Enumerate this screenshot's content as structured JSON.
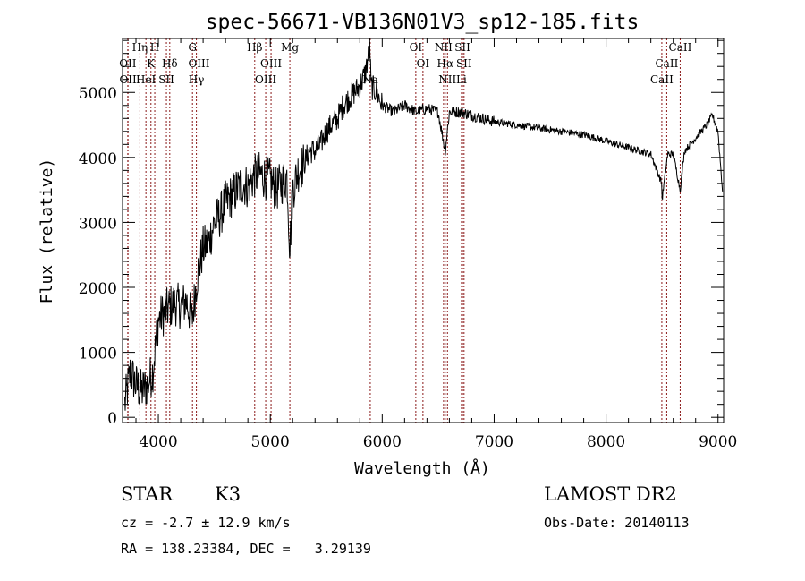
{
  "chart_data": {
    "type": "line",
    "title": "spec-56671-VB136N01V3_sp12-185.fits",
    "xlabel": "Wavelength (Å)",
    "ylabel": "Flux (relative)",
    "xlim": [
      3680,
      9050
    ],
    "ylim": [
      -80,
      5830
    ],
    "x_ticks": [
      4000,
      5000,
      6000,
      7000,
      8000,
      9000
    ],
    "y_ticks": [
      0,
      1000,
      2000,
      3000,
      4000,
      5000
    ],
    "grid": false,
    "series": [
      {
        "name": "spectrum",
        "x": [
          3700,
          3750,
          3800,
          3850,
          3900,
          3950,
          4000,
          4050,
          4100,
          4150,
          4200,
          4250,
          4300,
          4350,
          4400,
          4450,
          4500,
          4550,
          4600,
          4650,
          4700,
          4750,
          4800,
          4850,
          4900,
          4950,
          5000,
          5050,
          5100,
          5150,
          5175,
          5200,
          5250,
          5300,
          5350,
          5400,
          5450,
          5500,
          5550,
          5600,
          5650,
          5700,
          5750,
          5800,
          5850,
          5890,
          5900,
          5950,
          6000,
          6050,
          6100,
          6150,
          6200,
          6250,
          6300,
          6400,
          6500,
          6563,
          6600,
          6700,
          6800,
          6900,
          7000,
          7200,
          7400,
          7600,
          7800,
          8000,
          8200,
          8400,
          8498,
          8500,
          8550,
          8600,
          8662,
          8700,
          8800,
          8900,
          8950,
          9000,
          9040
        ],
        "y": [
          200,
          700,
          500,
          400,
          500,
          700,
          1500,
          1600,
          1700,
          1750,
          1700,
          1800,
          1500,
          2200,
          2600,
          2700,
          3000,
          3100,
          3300,
          3400,
          3500,
          3600,
          3550,
          3700,
          3750,
          3700,
          3650,
          3500,
          3600,
          3700,
          2600,
          3500,
          3800,
          3900,
          4100,
          4100,
          4200,
          4400,
          4500,
          4600,
          4800,
          4900,
          5000,
          5100,
          5300,
          5700,
          5100,
          5000,
          4800,
          4750,
          4700,
          4750,
          4800,
          4750,
          4700,
          4750,
          4700,
          4100,
          4700,
          4700,
          4650,
          4600,
          4550,
          4500,
          4450,
          4400,
          4350,
          4250,
          4150,
          4050,
          3600,
          3350,
          4050,
          4050,
          3500,
          4100,
          4300,
          4500,
          4650,
          4400,
          3500
        ]
      }
    ],
    "lines": [
      {
        "name": "OII",
        "wavelength": 3727
      },
      {
        "name": "OII",
        "wavelength": 3729
      },
      {
        "name": "Hη",
        "wavelength": 3835
      },
      {
        "name": "HeI",
        "wavelength": 3889
      },
      {
        "name": "K",
        "wavelength": 3934
      },
      {
        "name": "H",
        "wavelength": 3968
      },
      {
        "name": "SII",
        "wavelength": 4072
      },
      {
        "name": "Hδ",
        "wavelength": 4102
      },
      {
        "name": "G",
        "wavelength": 4305
      },
      {
        "name": "Hγ",
        "wavelength": 4340
      },
      {
        "name": "OIII",
        "wavelength": 4363
      },
      {
        "name": "Hβ",
        "wavelength": 4861
      },
      {
        "name": "OIII",
        "wavelength": 4959
      },
      {
        "name": "OIII",
        "wavelength": 5007
      },
      {
        "name": "Mg",
        "wavelength": 5175
      },
      {
        "name": "Na",
        "wavelength": 5893
      },
      {
        "name": "OI",
        "wavelength": 6300
      },
      {
        "name": "OI",
        "wavelength": 6364
      },
      {
        "name": "NII",
        "wavelength": 6548
      },
      {
        "name": "Hα",
        "wavelength": 6563
      },
      {
        "name": "NII",
        "wavelength": 6583
      },
      {
        "name": "Li",
        "wavelength": 6708
      },
      {
        "name": "SII",
        "wavelength": 6717
      },
      {
        "name": "SII",
        "wavelength": 6731
      },
      {
        "name": "CaII",
        "wavelength": 8498
      },
      {
        "name": "CaII",
        "wavelength": 8542
      },
      {
        "name": "CaII",
        "wavelength": 8662
      }
    ],
    "colors": {
      "spectrum": "#000000",
      "lines": "#8b1a1a"
    }
  },
  "info": {
    "object_type": "STAR",
    "subclass": "K3",
    "survey": "LAMOST DR2",
    "cz": "cz = -2.7 ± 12.9 km/s",
    "obs_date": "Obs-Date: 20140113",
    "coords": "RA = 138.23384, DEC =   3.29139"
  }
}
